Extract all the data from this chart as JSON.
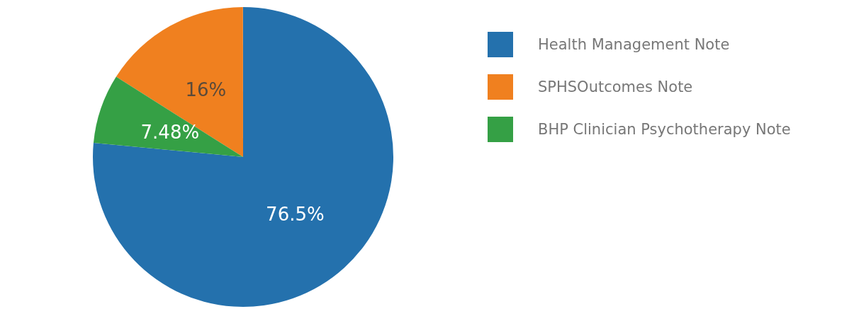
{
  "chart_data": {
    "type": "pie",
    "categories": [
      "Health Management Note",
      "SPHSOutcomes Note",
      "BHP Clinician Psychotherapy Note"
    ],
    "values": [
      76.5,
      16,
      7.48
    ],
    "value_labels": [
      "76.5%",
      "16%",
      "7.48%"
    ],
    "colors": [
      "#2471ad",
      "#f0801f",
      "#35a045"
    ],
    "legend": "top right"
  }
}
